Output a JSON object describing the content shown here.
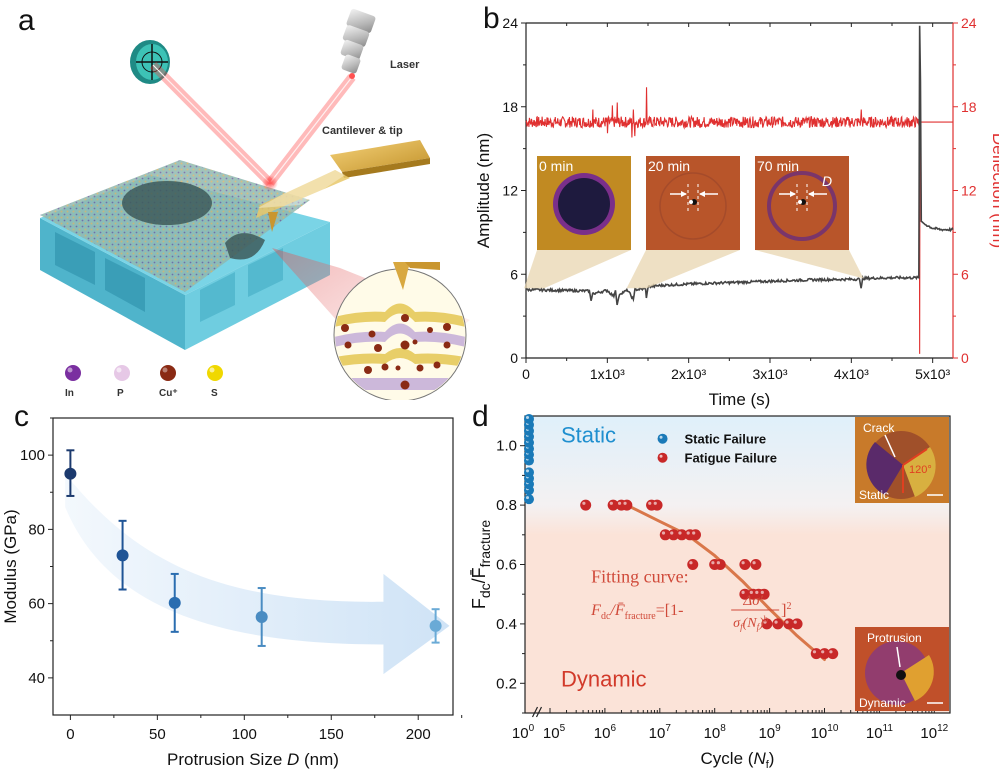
{
  "figure": {
    "panel_labels": [
      "a",
      "b",
      "c",
      "d"
    ]
  },
  "panel_a": {
    "labels": {
      "laser": "Laser",
      "cantilever": "Cantilever & tip"
    },
    "legend": [
      {
        "label": "In",
        "color": "#7a2fa0"
      },
      {
        "label": "P",
        "color": "#e6c8e6"
      },
      {
        "label": "Cu⁺",
        "color": "#8a2a14"
      },
      {
        "label": "S",
        "color": "#f0d800"
      }
    ],
    "colors": {
      "substrate": "#5cc0d6",
      "laser": "#e02020",
      "cantilever": "#d9b040",
      "detector": "#2fb0a8"
    }
  },
  "chart_data": [
    {
      "id": "b",
      "type": "line",
      "xlabel": "Time (s)",
      "ylabel": "Amplitude (nm)",
      "y2label": "Deflection (nm)",
      "xlim": [
        0,
        5250
      ],
      "ylim": [
        0,
        24
      ],
      "y2lim": [
        0,
        24
      ],
      "xticks": [
        0,
        1000,
        2000,
        3000,
        4000,
        5000
      ],
      "xtick_labels": [
        "0",
        "1x10³",
        "2x10³",
        "3x10³",
        "4x10³",
        "5x10³"
      ],
      "yticks": [
        0,
        6,
        12,
        18,
        24
      ],
      "ytick_labels": [
        "0",
        "6",
        "12",
        "18",
        "24"
      ],
      "y2ticks": [
        0,
        6,
        12,
        18,
        24
      ],
      "y2tick_labels": [
        "0",
        "6",
        "12",
        "18",
        "24"
      ],
      "series": [
        {
          "name": "Amplitude",
          "axis": "left",
          "color": "#444444",
          "points": [
            [
              0,
              4.9
            ],
            [
              400,
              4.85
            ],
            [
              780,
              4.8
            ],
            [
              800,
              4.1
            ],
            [
              820,
              4.6
            ],
            [
              1000,
              4.85
            ],
            [
              1080,
              4.4
            ],
            [
              1100,
              4.85
            ],
            [
              1120,
              3.8
            ],
            [
              1150,
              4.6
            ],
            [
              1250,
              4.85
            ],
            [
              1320,
              4.2
            ],
            [
              1340,
              4.9
            ],
            [
              1470,
              4.95
            ],
            [
              1480,
              4.3
            ],
            [
              1500,
              5.1
            ],
            [
              1650,
              5.2
            ],
            [
              2000,
              5.3
            ],
            [
              2500,
              5.4
            ],
            [
              3000,
              5.5
            ],
            [
              3500,
              5.6
            ],
            [
              4100,
              5.65
            ],
            [
              4120,
              5.0
            ],
            [
              4140,
              5.7
            ],
            [
              4500,
              5.75
            ],
            [
              4830,
              5.75
            ],
            [
              4840,
              23.8
            ],
            [
              4850,
              19.8
            ],
            [
              4860,
              9.8
            ],
            [
              4900,
              9.6
            ],
            [
              5000,
              9.3
            ],
            [
              5100,
              9.2
            ],
            [
              5250,
              9.2
            ]
          ]
        },
        {
          "name": "Deflection",
          "axis": "right",
          "color": "#e03030",
          "baseline": 16.9,
          "noise": 0.4,
          "spikes": [
            [
              820,
              17.8
            ],
            [
              1000,
              18.0
            ],
            [
              1060,
              18.1
            ],
            [
              1120,
              18.3
            ],
            [
              1320,
              17.8
            ],
            [
              1480,
              19.4
            ],
            [
              4120,
              17.8
            ]
          ],
          "dips": [
            [
              1000,
              16.1
            ],
            [
              1300,
              15.8
            ],
            [
              1340,
              15.9
            ]
          ],
          "points_after": [
            [
              4840,
              0.3
            ],
            [
              4845,
              20.0
            ],
            [
              4850,
              16.9
            ],
            [
              5250,
              16.9
            ]
          ]
        }
      ],
      "insets": [
        {
          "label": "0 min",
          "time_anchor": 100
        },
        {
          "label": "20 min",
          "time_anchor": 1360
        },
        {
          "label": "70 min",
          "time_anchor": 4150,
          "annotation": "D"
        }
      ]
    },
    {
      "id": "c",
      "type": "scatter",
      "xlabel": "Protrusion Size D (nm)",
      "xlabel_parts": [
        "Protrusion Size ",
        "D",
        " (nm)"
      ],
      "ylabel": "Modulus (GPa)",
      "xlim": [
        -10,
        220
      ],
      "ylim": [
        30,
        110
      ],
      "xticks": [
        0,
        50,
        100,
        150,
        200
      ],
      "xtick_labels": [
        "0",
        "50",
        "100",
        "150",
        "200"
      ],
      "yticks": [
        40,
        60,
        80,
        100
      ],
      "ytick_labels": [
        "40",
        "60",
        "80",
        "100"
      ],
      "points": [
        {
          "x": 0,
          "y": 95,
          "err_low": 89,
          "err_high": 101.3,
          "color": "#1c3a6e"
        },
        {
          "x": 30,
          "y": 73,
          "err_low": 63.8,
          "err_high": 82.3,
          "color": "#1f5496"
        },
        {
          "x": 60,
          "y": 60.2,
          "err_low": 52.4,
          "err_high": 68,
          "color": "#2a6db0"
        },
        {
          "x": 110,
          "y": 56.4,
          "err_low": 48.6,
          "err_high": 64.2,
          "color": "#4a8cc2"
        },
        {
          "x": 210,
          "y": 54,
          "err_low": 49.5,
          "err_high": 58.5,
          "color": "#6aaad6"
        }
      ],
      "trend_arrow_color": "#cfe3f6"
    },
    {
      "id": "d",
      "type": "scatter",
      "xscale": "log",
      "xlabel": "Cycle (Nf)",
      "xlabel_parts": [
        "Cycle (",
        "N",
        "f",
        ")"
      ],
      "ylabel": "Fdc/F̄fracture",
      "ylabel_parts": [
        "F",
        "dc",
        "/F̄",
        "fracture"
      ],
      "ylim": [
        0.1,
        1.1
      ],
      "yticks": [
        0.2,
        0.4,
        0.6,
        0.8,
        1.0
      ],
      "ytick_labels": [
        "0.2",
        "0.4",
        "0.6",
        "0.8",
        "1.0"
      ],
      "xtick_labels": [
        "10⁰",
        "10⁵",
        "10⁶",
        "10⁷",
        "10⁸",
        "10⁹",
        "10¹⁰",
        "10¹¹",
        "10¹²"
      ],
      "xtick_exponents": [
        0,
        5,
        6,
        7,
        8,
        9,
        10,
        11,
        12
      ],
      "axis_break": "between 10^0 and 10^5",
      "region_labels": {
        "static": "Static",
        "dynamic": "Dynamic"
      },
      "region_colors": {
        "static": "#dff0fa",
        "dynamic": "#fbe3d8"
      },
      "legend": [
        {
          "label": "Static Failure",
          "color": "#1a7ab8"
        },
        {
          "label": "Fatigue Failure",
          "color": "#c82828"
        }
      ],
      "series": [
        {
          "name": "Static Failure",
          "color": "#1a7ab8",
          "x_exp": 0.8,
          "y": [
            0.82,
            0.85,
            0.87,
            0.89,
            0.91,
            0.95,
            0.97,
            0.99,
            1.01,
            1.03,
            1.05,
            1.07,
            1.09
          ]
        },
        {
          "name": "Fatigue Failure",
          "color": "#c82828",
          "points_exp": [
            [
              5.65,
              0.8
            ],
            [
              6.15,
              0.8
            ],
            [
              6.3,
              0.8
            ],
            [
              6.4,
              0.8
            ],
            [
              6.85,
              0.8
            ],
            [
              6.95,
              0.8
            ],
            [
              7.1,
              0.7
            ],
            [
              7.25,
              0.7
            ],
            [
              7.4,
              0.7
            ],
            [
              7.55,
              0.7
            ],
            [
              7.65,
              0.7
            ],
            [
              7.6,
              0.6
            ],
            [
              8.0,
              0.6
            ],
            [
              8.1,
              0.6
            ],
            [
              8.55,
              0.6
            ],
            [
              8.75,
              0.6
            ],
            [
              8.55,
              0.5
            ],
            [
              8.7,
              0.5
            ],
            [
              8.8,
              0.5
            ],
            [
              8.9,
              0.5
            ],
            [
              8.95,
              0.4
            ],
            [
              9.15,
              0.4
            ],
            [
              9.35,
              0.4
            ],
            [
              9.5,
              0.4
            ],
            [
              9.85,
              0.3
            ],
            [
              10.0,
              0.3
            ],
            [
              10.15,
              0.3
            ]
          ]
        }
      ],
      "fit_curve": {
        "color": "#d9774a",
        "points_exp": [
          [
            6.4,
            0.8
          ],
          [
            7.0,
            0.745
          ],
          [
            7.5,
            0.7
          ],
          [
            8.0,
            0.63
          ],
          [
            8.5,
            0.545
          ],
          [
            9.0,
            0.45
          ],
          [
            9.5,
            0.36
          ],
          [
            10.0,
            0.28
          ]
        ]
      },
      "fitting_text": {
        "title": "Fitting curve:",
        "color": "#d04a3a"
      },
      "insets": [
        {
          "id": "static",
          "labels": [
            "Crack",
            "120°",
            "Static"
          ]
        },
        {
          "id": "dynamic",
          "labels": [
            "Protrusion",
            "Dynamic"
          ]
        }
      ]
    }
  ]
}
